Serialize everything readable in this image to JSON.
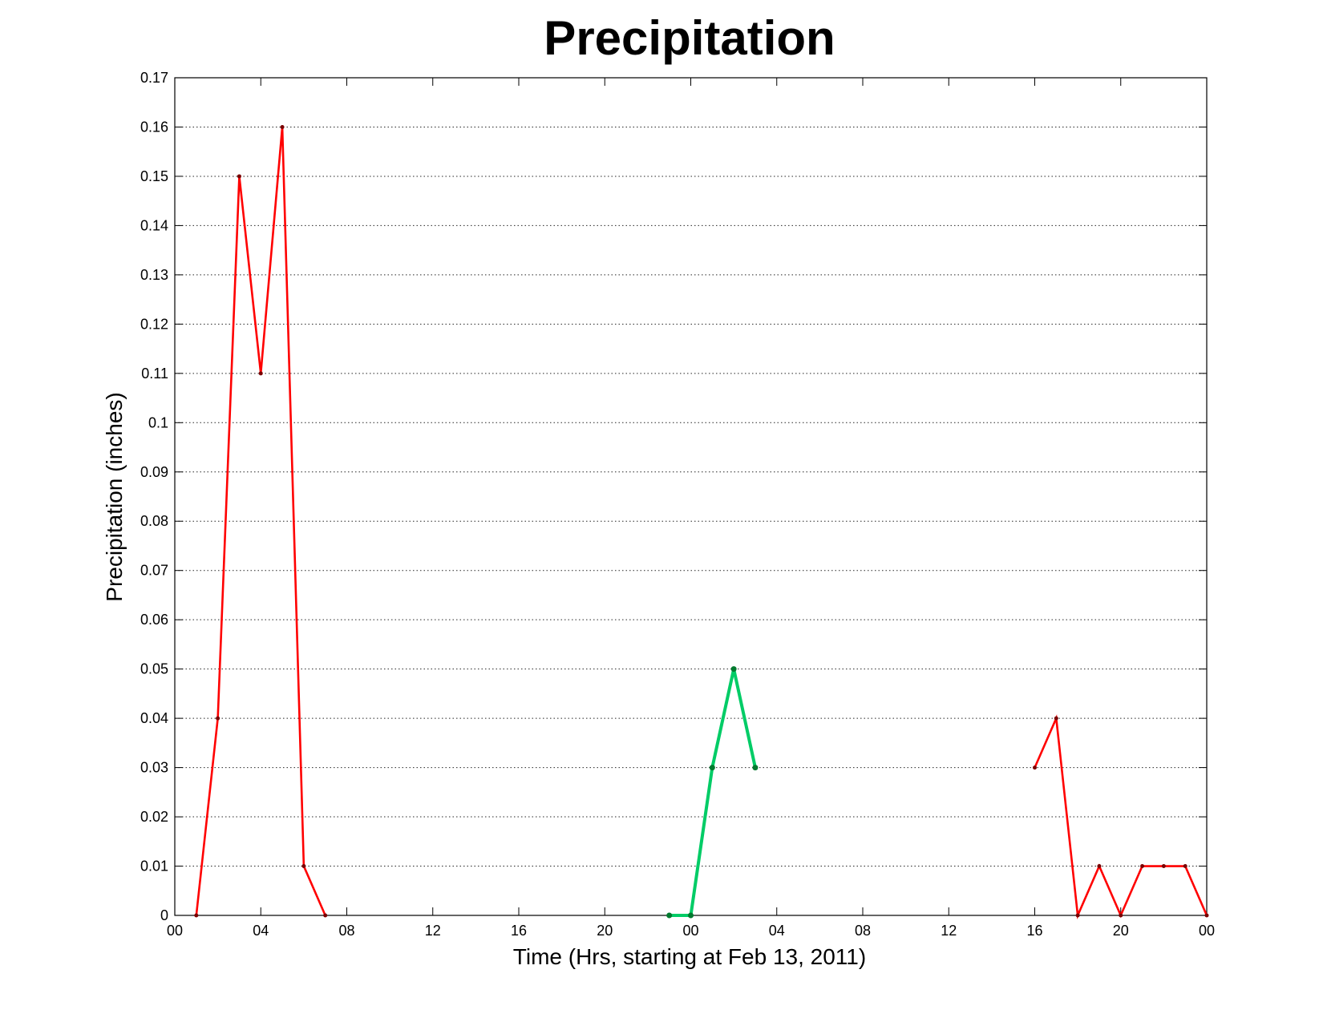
{
  "chart_data": {
    "type": "line",
    "title": "Precipitation",
    "xlabel": "Time (Hrs, starting at Feb 13, 2011)",
    "ylabel": "Precipitation (inches)",
    "xlim": [
      0,
      48
    ],
    "ylim": [
      0,
      0.17
    ],
    "grid": true,
    "x_tick_values": [
      0,
      4,
      8,
      12,
      16,
      20,
      24,
      28,
      32,
      36,
      40,
      44,
      48
    ],
    "x_tick_labels": [
      "00",
      "04",
      "08",
      "12",
      "16",
      "20",
      "00",
      "04",
      "08",
      "12",
      "16",
      "20",
      "00"
    ],
    "y_tick_values": [
      0,
      0.01,
      0.02,
      0.03,
      0.04,
      0.05,
      0.06,
      0.07,
      0.08,
      0.09,
      0.1,
      0.11,
      0.12,
      0.13,
      0.14,
      0.15,
      0.16,
      0.17
    ],
    "y_tick_labels": [
      "0",
      "0.01",
      "0.02",
      "0.03",
      "0.04",
      "0.05",
      "0.06",
      "0.07",
      "0.08",
      "0.09",
      "0.1",
      "0.11",
      "0.12",
      "0.13",
      "0.14",
      "0.15",
      "0.16",
      "0.17"
    ],
    "series": [
      {
        "color": "#ff0000",
        "marker_color": "#7a0000",
        "width": "thin",
        "x": [
          1,
          2,
          3,
          4,
          5,
          6,
          7
        ],
        "y": [
          0,
          0.04,
          0.15,
          0.11,
          0.16,
          0.01,
          0
        ]
      },
      {
        "color": "#00cc66",
        "marker_color": "#007a2e",
        "width": "thick",
        "x": [
          23,
          24,
          25,
          26,
          27
        ],
        "y": [
          0,
          0,
          0.03,
          0.05,
          0.03
        ]
      },
      {
        "color": "#ff0000",
        "marker_color": "#7a0000",
        "width": "thin",
        "x": [
          40,
          41,
          42,
          43,
          44,
          45,
          46,
          47,
          48
        ],
        "y": [
          0.03,
          0.04,
          0,
          0.01,
          0,
          0.01,
          0.01,
          0.01,
          0
        ]
      }
    ]
  }
}
